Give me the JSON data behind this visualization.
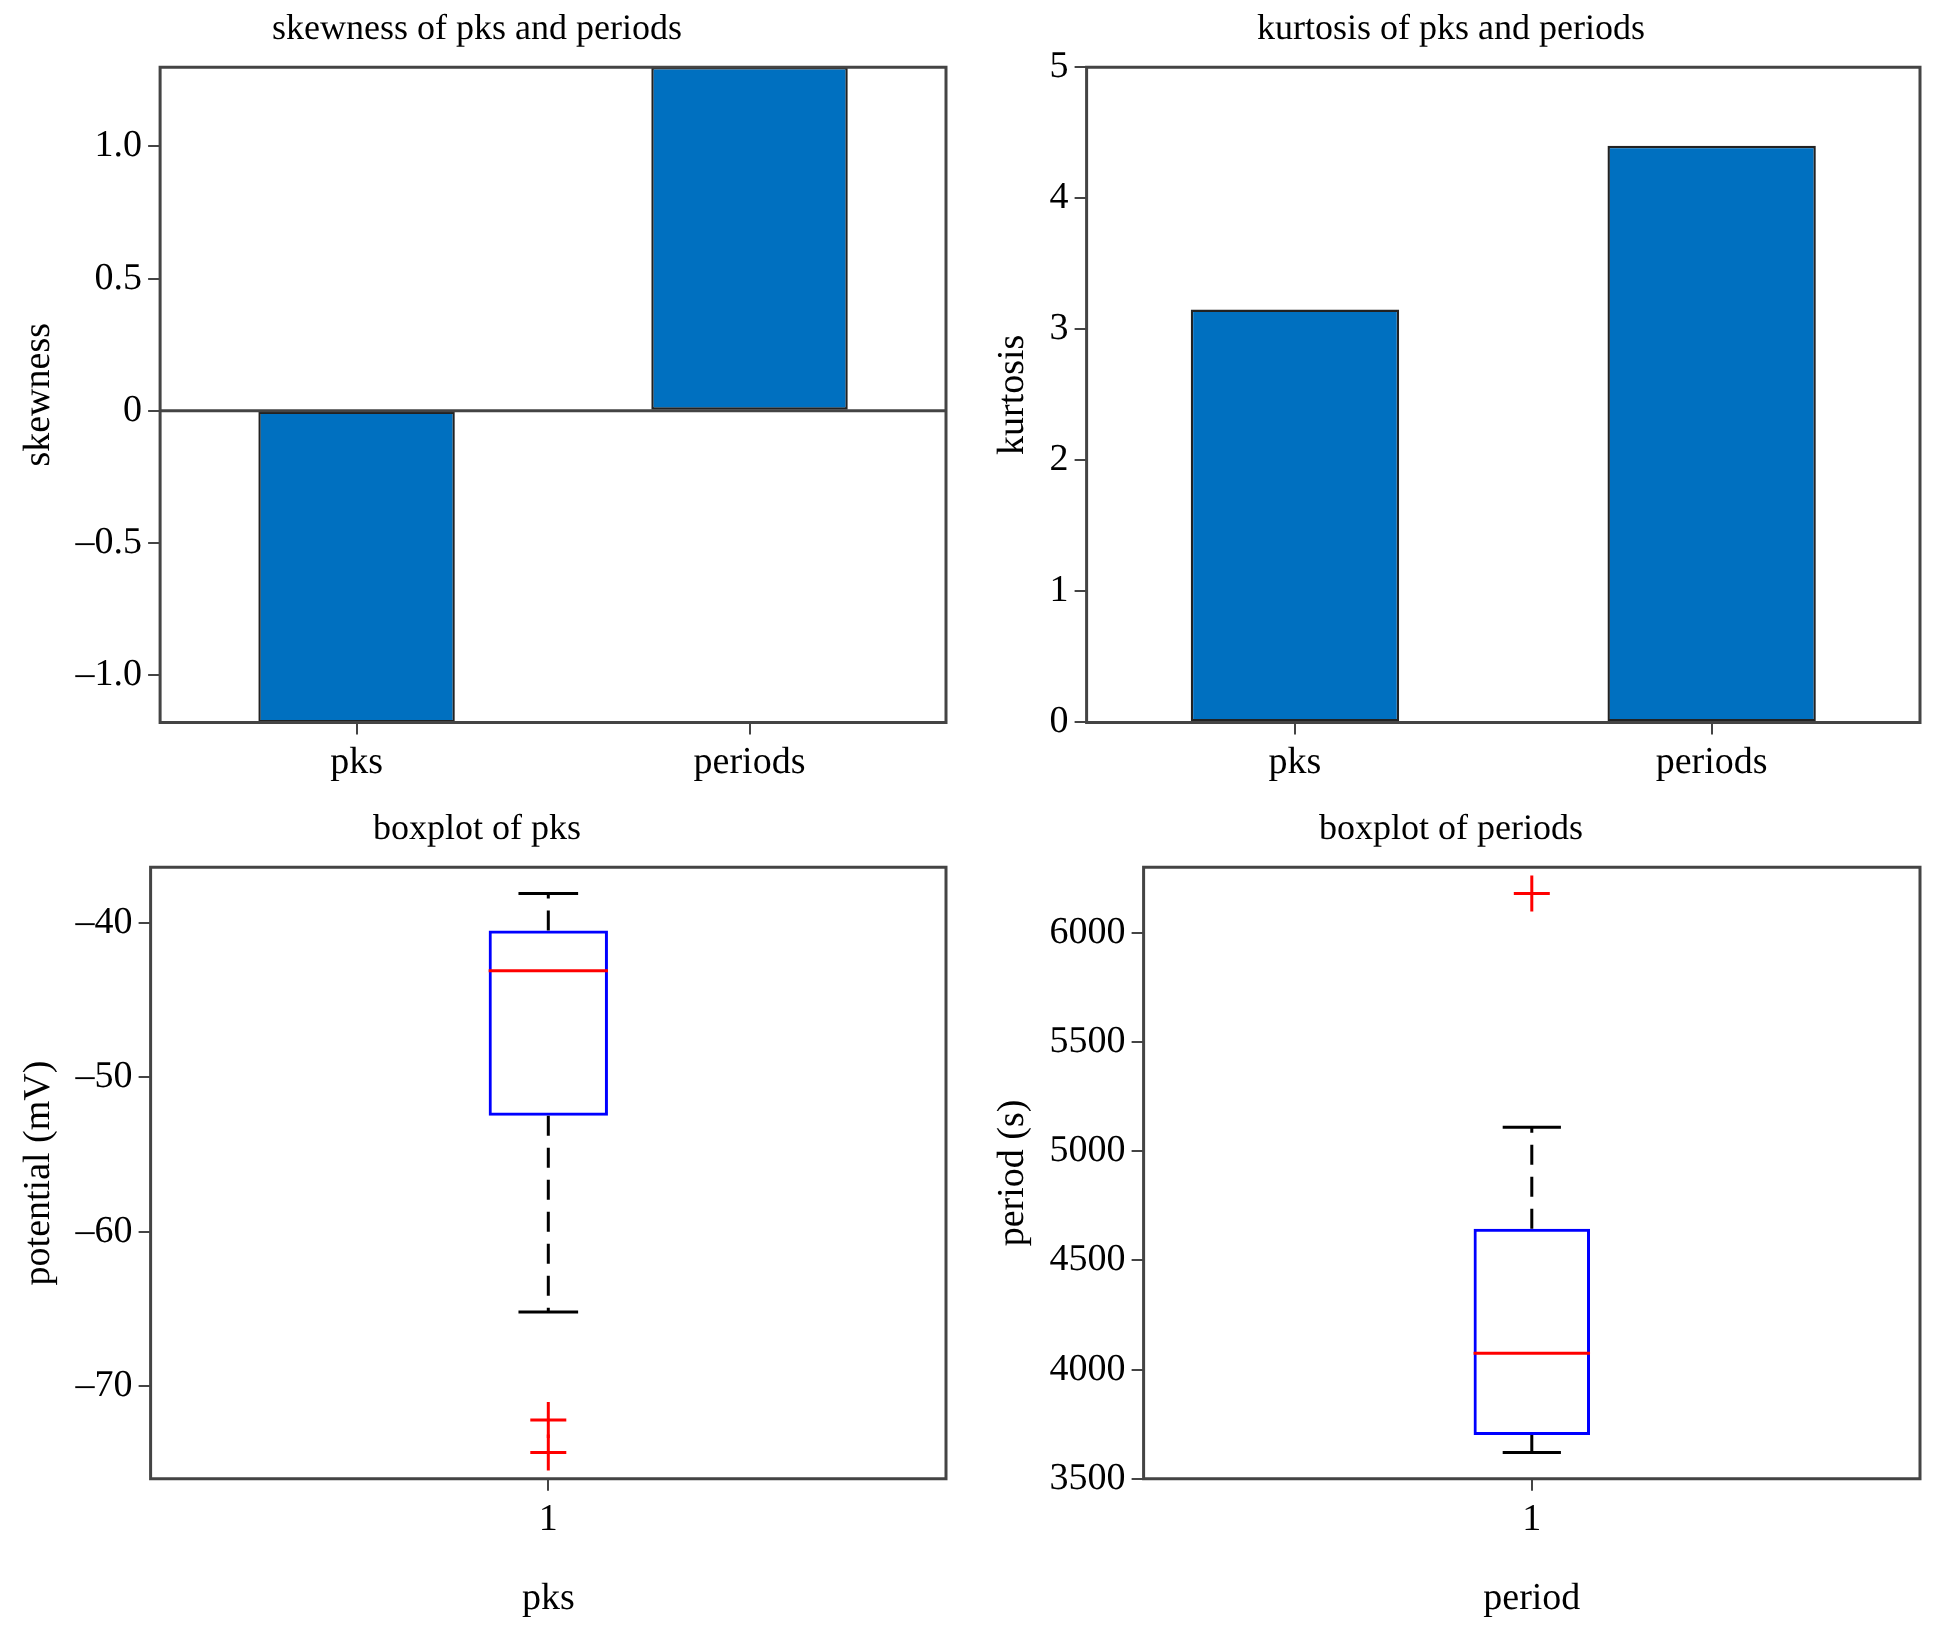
{
  "chart_data": [
    {
      "type": "bar",
      "title": "skewness of pks and periods",
      "ylabel": "skewness",
      "categories": [
        "pks",
        "periods"
      ],
      "values": [
        -1.18,
        1.3
      ],
      "color": "#0070c0",
      "ylim": [
        -1.18,
        1.3
      ],
      "yticks": [
        {
          "value": -1,
          "label": "–1.0"
        },
        {
          "value": -0.5,
          "label": "–0.5"
        },
        0,
        0.5,
        {
          "value": 1,
          "label": "1.0"
        }
      ],
      "ref_lines": [
        {
          "axis": "y",
          "value": 0,
          "color": "#444444"
        }
      ]
    },
    {
      "type": "bar",
      "title": "kurtosis of pks and periods",
      "ylabel": "kurtosis",
      "categories": [
        "pks",
        "periods"
      ],
      "values": [
        3.15,
        4.4
      ],
      "color": "#0070c0",
      "ylim": [
        0,
        5
      ],
      "yticks": [
        0,
        1,
        2,
        3,
        4,
        5
      ]
    },
    {
      "type": "box",
      "title": "boxplot of pks",
      "xlabel": "pks",
      "ylabel": "potential (mV)",
      "categories": [
        "1"
      ],
      "color": "#0000ff",
      "boxes": [
        {
          "low": -65.2,
          "q1": -52.5,
          "median": -43.1,
          "q3": -40.5,
          "high": -38.1,
          "outliers": [
            -72.2,
            -74.3
          ]
        }
      ],
      "ylim": [
        -76,
        -36.4
      ],
      "yticks": [
        {
          "value": -70,
          "label": "–70"
        },
        {
          "value": -60,
          "label": "–60"
        },
        {
          "value": -50,
          "label": "–50"
        },
        {
          "value": -40,
          "label": "–40"
        }
      ]
    },
    {
      "type": "box",
      "title": "boxplot of periods",
      "xlabel": "period",
      "ylabel": "period (s)",
      "categories": [
        "1"
      ],
      "color": "#0000ff",
      "boxes": [
        {
          "low": 3620,
          "q1": 3700,
          "median": 4075,
          "q3": 4645,
          "high": 5110,
          "outliers": [
            6180
          ]
        }
      ],
      "ylim": [
        3500,
        6300
      ],
      "yticks": [
        3500,
        4000,
        4500,
        5000,
        5500,
        6000
      ]
    }
  ]
}
